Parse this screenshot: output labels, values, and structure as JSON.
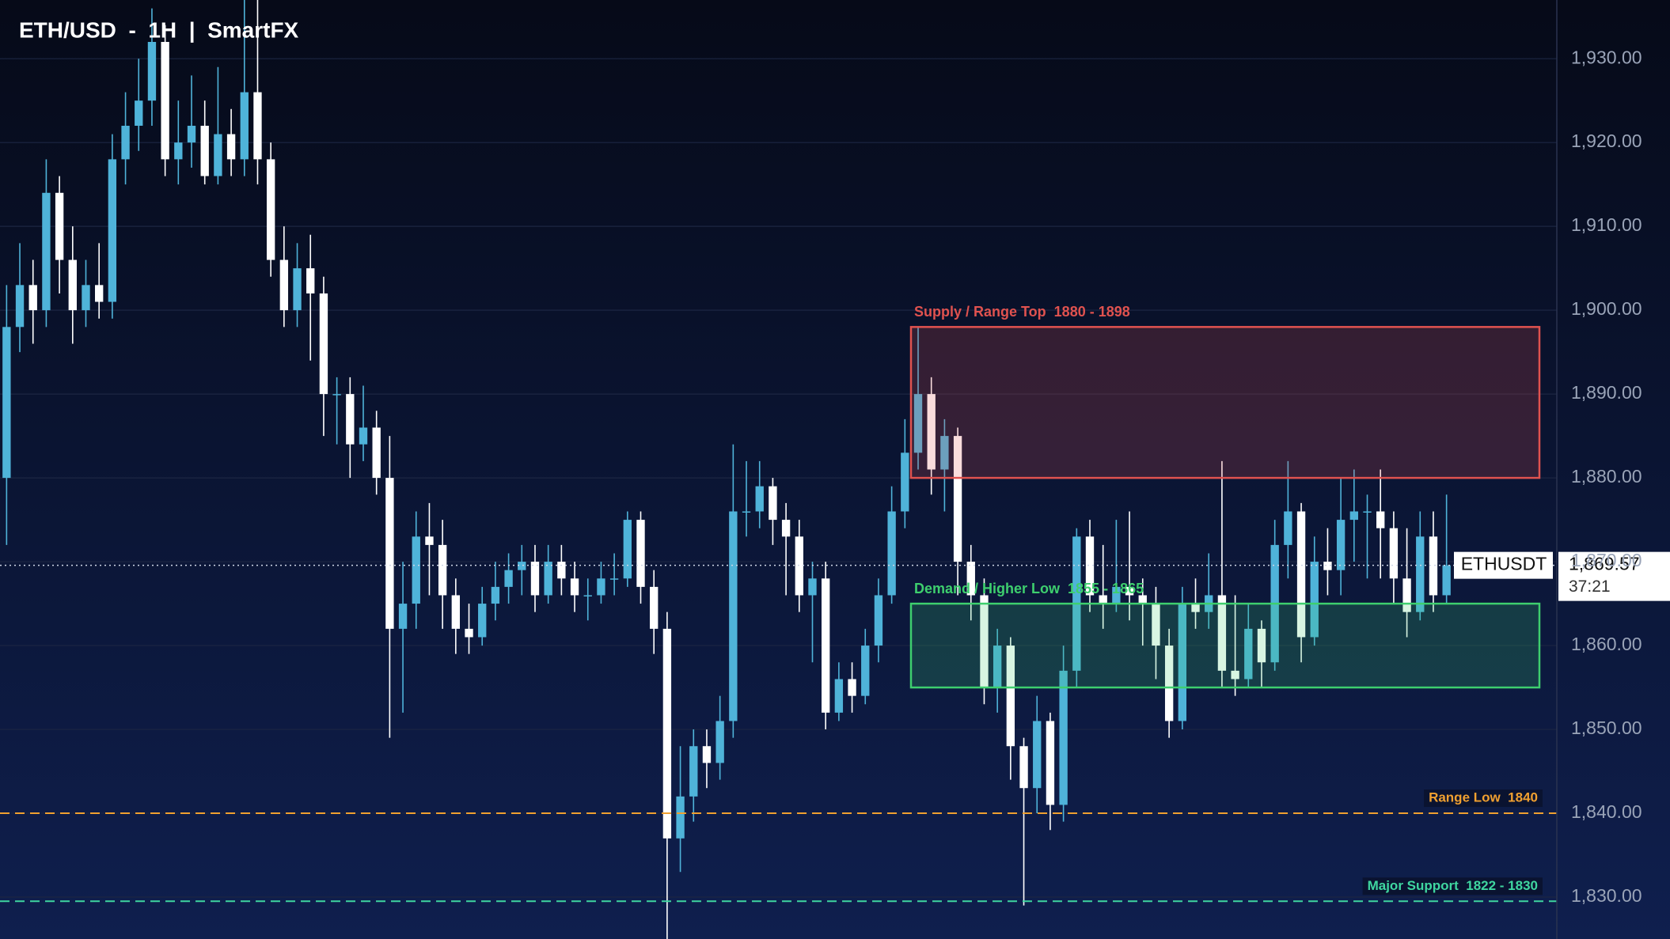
{
  "chart_data": {
    "type": "candlestick",
    "title": "ETH/USD  -  1H  |  SmartFX",
    "open": [
      1880,
      1898,
      1903,
      1900,
      1914,
      1906,
      1900,
      1903,
      1901,
      1918,
      1922,
      1925,
      1932,
      1918,
      1920,
      1922,
      1916,
      1921,
      1918,
      1926,
      1918,
      1906,
      1900,
      1905,
      1902,
      1890,
      1890,
      1884,
      1886,
      1880,
      1862,
      1865,
      1873,
      1872,
      1866,
      1862,
      1861,
      1865,
      1867,
      1869,
      1870,
      1866,
      1870,
      1868,
      1866,
      1866,
      1868,
      1868,
      1875,
      1867,
      1862,
      1837,
      1842,
      1848,
      1846,
      1851,
      1876,
      1876,
      1879,
      1875,
      1873,
      1866,
      1868,
      1852,
      1856,
      1854,
      1860,
      1866,
      1876,
      1883,
      1890,
      1881,
      1885,
      1870,
      1866,
      1855,
      1860,
      1848,
      1843,
      1851,
      1841,
      1857,
      1873,
      1866,
      1865,
      1867,
      1866,
      1865,
      1860,
      1851,
      1865,
      1864,
      1866,
      1857,
      1856,
      1862,
      1858,
      1872,
      1876,
      1861,
      1870,
      1869,
      1875,
      1876,
      1876,
      1874,
      1868,
      1864,
      1873,
      1866
    ],
    "high": [
      1903,
      1908,
      1906,
      1918,
      1916,
      1910,
      1906,
      1908,
      1921,
      1926,
      1930,
      1936,
      1934,
      1925,
      1928,
      1925,
      1929,
      1924,
      1937,
      1937,
      1920,
      1910,
      1908,
      1909,
      1904,
      1892,
      1892,
      1891,
      1888,
      1885,
      1870,
      1876,
      1877,
      1875,
      1868,
      1865,
      1867,
      1870,
      1871,
      1872,
      1872,
      1872,
      1872,
      1870,
      1868,
      1870,
      1871,
      1876,
      1876,
      1869,
      1864,
      1848,
      1850,
      1850,
      1854,
      1884,
      1882,
      1882,
      1880,
      1877,
      1875,
      1870,
      1870,
      1858,
      1858,
      1862,
      1868,
      1879,
      1887,
      1898,
      1892,
      1887,
      1886,
      1872,
      1868,
      1862,
      1861,
      1849,
      1854,
      1852,
      1860,
      1874,
      1875,
      1872,
      1875,
      1876,
      1868,
      1867,
      1862,
      1867,
      1868,
      1871,
      1882,
      1866,
      1865,
      1863,
      1875,
      1882,
      1877,
      1873,
      1874,
      1880,
      1881,
      1878,
      1881,
      1876,
      1874,
      1876,
      1876,
      1878
    ],
    "low": [
      1872,
      1895,
      1896,
      1898,
      1902,
      1896,
      1898,
      1899,
      1899,
      1915,
      1919,
      1922,
      1916,
      1915,
      1917,
      1915,
      1915,
      1916,
      1916,
      1915,
      1904,
      1898,
      1898,
      1894,
      1885,
      1884,
      1880,
      1882,
      1878,
      1849,
      1852,
      1862,
      1866,
      1862,
      1859,
      1859,
      1860,
      1863,
      1865,
      1866,
      1864,
      1865,
      1866,
      1864,
      1863,
      1865,
      1866,
      1867,
      1865,
      1859,
      1825,
      1833,
      1839,
      1843,
      1844,
      1849,
      1873,
      1874,
      1872,
      1866,
      1864,
      1858,
      1850,
      1851,
      1852,
      1853,
      1858,
      1865,
      1874,
      1881,
      1878,
      1876,
      1866,
      1863,
      1853,
      1852,
      1844,
      1829,
      1840,
      1838,
      1839,
      1855,
      1864,
      1862,
      1864,
      1863,
      1860,
      1856,
      1849,
      1850,
      1862,
      1862,
      1855,
      1854,
      1855,
      1855,
      1857,
      1868,
      1858,
      1860,
      1866,
      1866,
      1870,
      1868,
      1868,
      1865,
      1861,
      1863,
      1864,
      1865
    ],
    "close": [
      1898,
      1903,
      1900,
      1914,
      1906,
      1900,
      1903,
      1901,
      1918,
      1922,
      1925,
      1932,
      1918,
      1920,
      1922,
      1916,
      1921,
      1918,
      1926,
      1918,
      1906,
      1900,
      1905,
      1902,
      1890,
      1890,
      1884,
      1886,
      1880,
      1862,
      1865,
      1873,
      1872,
      1866,
      1862,
      1861,
      1865,
      1867,
      1869,
      1870,
      1866,
      1870,
      1868,
      1866,
      1866,
      1868,
      1868,
      1875,
      1867,
      1862,
      1837,
      1842,
      1848,
      1846,
      1851,
      1876,
      1876,
      1879,
      1875,
      1873,
      1866,
      1868,
      1852,
      1856,
      1854,
      1860,
      1866,
      1876,
      1883,
      1890,
      1881,
      1885,
      1870,
      1866,
      1855,
      1860,
      1848,
      1843,
      1851,
      1841,
      1857,
      1873,
      1866,
      1865,
      1867,
      1866,
      1865,
      1860,
      1851,
      1865,
      1864,
      1866,
      1857,
      1856,
      1862,
      1858,
      1872,
      1876,
      1861,
      1870,
      1869,
      1875,
      1876,
      1876,
      1874,
      1868,
      1864,
      1873,
      1866,
      1869.57
    ],
    "up_color": "#4fb3d9",
    "down_color": "#ffffff",
    "ylim": [
      1825,
      1937
    ],
    "yticks": [
      {
        "value": 1830,
        "label": "1,830.00"
      },
      {
        "value": 1840,
        "label": "1,840.00"
      },
      {
        "value": 1850,
        "label": "1,850.00"
      },
      {
        "value": 1860,
        "label": "1,860.00"
      },
      {
        "value": 1870,
        "label": "1,870.00"
      },
      {
        "value": 1880,
        "label": "1,880.00"
      },
      {
        "value": 1890,
        "label": "1,890.00"
      },
      {
        "value": 1900,
        "label": "1,900.00"
      },
      {
        "value": 1910,
        "label": "1,910.00"
      },
      {
        "value": 1920,
        "label": "1,920.00"
      },
      {
        "value": 1930,
        "label": "1,930.00"
      }
    ],
    "grid": true,
    "zones": [
      {
        "label": "Supply / Range Top  1880 - 1898",
        "low": 1880,
        "high": 1898,
        "color": "#e0524f"
      },
      {
        "label": "Demand / Higher Low  1855 - 1865",
        "low": 1855,
        "high": 1865,
        "color": "#3ecf6e"
      }
    ],
    "levels": [
      {
        "label": "Range Low  1840",
        "value": 1840,
        "color": "#f0a030"
      },
      {
        "label": "Major Support  1822 - 1830",
        "value": 1829.5,
        "color": "#3fd6a0"
      }
    ],
    "last_price": {
      "value": 1869.57,
      "label": "1,869.57",
      "symbol": "ETHUSDT",
      "countdown": "37:21"
    }
  }
}
